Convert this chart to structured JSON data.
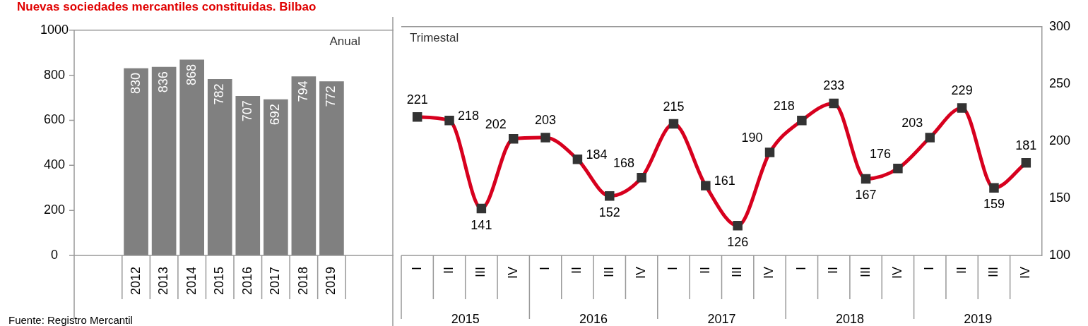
{
  "chart_data": [
    {
      "type": "bar",
      "title": "Nuevas sociedades mercantiles constituidas. Bilbao",
      "categories": [
        "2012",
        "2013",
        "2014",
        "2015",
        "2016",
        "2017",
        "2018",
        "2019"
      ],
      "values": [
        830,
        836,
        868,
        782,
        707,
        692,
        794,
        772
      ],
      "color": "#808080",
      "ylim": [
        0,
        1000
      ],
      "yticks": [
        0,
        200,
        400,
        600,
        800,
        1000
      ],
      "data_labels": true,
      "annotations": [
        "Anual",
        "Fuente: Registro Mercantil"
      ]
    },
    {
      "type": "line",
      "categories": [
        "I",
        "II",
        "III",
        "IV",
        "I",
        "II",
        "III",
        "IV",
        "I",
        "II",
        "III",
        "IV",
        "I",
        "II",
        "III",
        "IV",
        "I",
        "II",
        "III",
        "IV"
      ],
      "values": [
        221,
        218,
        141,
        202,
        203,
        184,
        152,
        168,
        215,
        161,
        126,
        190,
        218,
        233,
        167,
        176,
        203,
        229,
        159,
        181
      ],
      "color": "#d7001e",
      "marker": "square",
      "ylim": [
        100,
        300
      ],
      "yticks": [
        100,
        150,
        200,
        250,
        300
      ],
      "data_labels": true,
      "annotations": [
        "Trimestal",
        "2015",
        "2016",
        "2017",
        "2018",
        "2019"
      ]
    }
  ]
}
